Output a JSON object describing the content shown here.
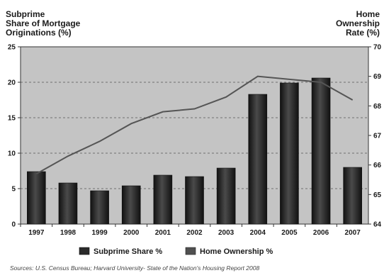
{
  "chart_data": {
    "type": "bar",
    "title_left": [
      "Subprime",
      "Share of Mortgage",
      "Originations (%)"
    ],
    "title_right": [
      "Home",
      "Ownership",
      "Rate (%)"
    ],
    "categories": [
      "1997",
      "1998",
      "1999",
      "2000",
      "2001",
      "2002",
      "2003",
      "2004",
      "2005",
      "2006",
      "2007"
    ],
    "series": [
      {
        "name": "Subprime Share %",
        "type": "bar",
        "axis": "left",
        "values": [
          7.4,
          5.8,
          4.7,
          5.4,
          6.9,
          6.7,
          7.9,
          18.3,
          19.9,
          20.6,
          8.0
        ]
      },
      {
        "name": "Home Ownership %",
        "type": "line",
        "axis": "right",
        "values": [
          65.7,
          66.3,
          66.8,
          67.4,
          67.8,
          67.9,
          68.3,
          69.0,
          68.9,
          68.8,
          68.2
        ]
      }
    ],
    "y_left": {
      "min": 0,
      "max": 25,
      "ticks": [
        "0",
        "5",
        "10",
        "15",
        "20",
        "25"
      ]
    },
    "y_right": {
      "min": 64,
      "max": 70,
      "ticks": [
        "64",
        "65",
        "66",
        "67",
        "68",
        "69",
        "70"
      ]
    },
    "grid": "horizontal-dashed",
    "legend_position": "bottom",
    "colors": {
      "plot_bg": "#c4c4c4",
      "bar": "#262626",
      "line": "#555555"
    }
  },
  "source": "Sources: U.S. Census Bureau; Harvard University- State of the Nation's Housing Report 2008"
}
